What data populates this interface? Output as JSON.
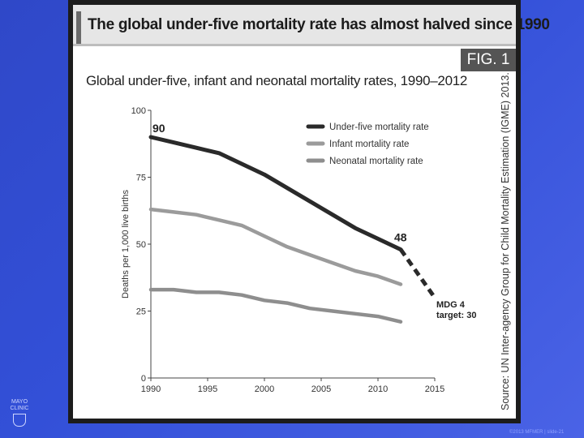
{
  "headline": "The global under-five mortality rate has almost halved since 1990",
  "fig_label": "FIG. 1",
  "subtitle": "Global under-five, infant and neonatal mortality rates, 1990–2012",
  "source": "Source: UN Inter-agency Group for Child Mortality Estimation (IGME) 2013.",
  "footer": "©2013 MFMER | slide-21",
  "logo": {
    "line1": "MAYO",
    "line2": "CLINIC"
  },
  "chart_data": {
    "type": "line",
    "title": "Global under-five, infant and neonatal mortality rates, 1990–2012",
    "ylabel": "Deaths per 1,000 live births",
    "xlabel": "",
    "xlim": [
      1990,
      2015
    ],
    "ylim": [
      0,
      100
    ],
    "xticks": [
      1990,
      1995,
      2000,
      2005,
      2010,
      2015
    ],
    "yticks": [
      0,
      25,
      50,
      75,
      100
    ],
    "grid": false,
    "legend_position": "top-right",
    "colors": {
      "under_five": "#2a2a2a",
      "infant": "#9b9b9b",
      "neonatal": "#8e8e8e"
    },
    "series": [
      {
        "name": "Under-five mortality rate",
        "x": [
          1990,
          1992,
          1994,
          1996,
          1998,
          2000,
          2002,
          2004,
          2006,
          2008,
          2010,
          2012
        ],
        "values": [
          90,
          88,
          86,
          84,
          80,
          76,
          71,
          66,
          61,
          56,
          52,
          48
        ]
      },
      {
        "name": "Infant mortality rate",
        "x": [
          1990,
          1992,
          1994,
          1996,
          1998,
          2000,
          2002,
          2004,
          2006,
          2008,
          2010,
          2012
        ],
        "values": [
          63,
          62,
          61,
          59,
          57,
          53,
          49,
          46,
          43,
          40,
          38,
          35
        ]
      },
      {
        "name": "Neonatal mortality rate",
        "x": [
          1990,
          1992,
          1994,
          1996,
          1998,
          2000,
          2002,
          2004,
          2006,
          2008,
          2010,
          2012
        ],
        "values": [
          33,
          33,
          32,
          32,
          31,
          29,
          28,
          26,
          25,
          24,
          23,
          21
        ]
      }
    ],
    "projection": {
      "x": [
        2012,
        2015
      ],
      "values": [
        48,
        30
      ]
    },
    "annotations": [
      {
        "text": "90",
        "x": 1990,
        "y": 90
      },
      {
        "text": "48",
        "x": 2012,
        "y": 48
      },
      {
        "text": "MDG 4",
        "x": 2015,
        "y": 30
      },
      {
        "text": "target: 30",
        "x": 2015,
        "y": 30
      }
    ]
  }
}
